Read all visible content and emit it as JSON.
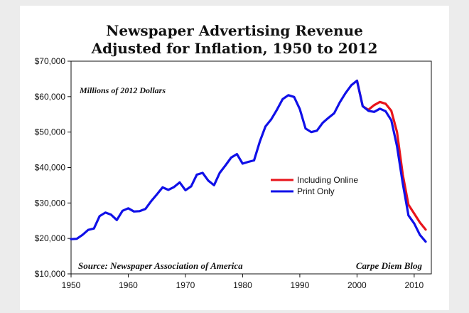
{
  "chart_data": {
    "type": "line",
    "title_line1": "Newspaper Advertising Revenue",
    "title_line2": "Adjusted for Inflation, 1950 to 2012",
    "units_note": "Millions of 2012 Dollars",
    "source": "Source: Newspaper Association of America",
    "credit": "Carpe Diem Blog",
    "xlim": [
      1950,
      2013
    ],
    "ylim": [
      10000,
      70000
    ],
    "x_ticks": [
      1950,
      1960,
      1970,
      1980,
      1990,
      2000,
      2010
    ],
    "y_ticks": [
      10000,
      20000,
      30000,
      40000,
      50000,
      60000,
      70000
    ],
    "y_tick_labels": [
      "$10,000",
      "$20,000",
      "$30,000",
      "$40,000",
      "$50,000",
      "$60,000",
      "$70,000"
    ],
    "grid": false,
    "legend_position": "center-right",
    "series": [
      {
        "name": "Including Online",
        "color": "#e8141b",
        "x": [
          2000,
          2001,
          2002,
          2003,
          2004,
          2005,
          2006,
          2007,
          2008,
          2009,
          2010,
          2011,
          2012
        ],
        "y": [
          64500,
          57300,
          56300,
          57600,
          58500,
          58000,
          56000,
          50000,
          38000,
          29500,
          27000,
          24500,
          22500
        ]
      },
      {
        "name": "Print Only",
        "color": "#1010e8",
        "x": [
          1950,
          1951,
          1952,
          1953,
          1954,
          1955,
          1956,
          1957,
          1958,
          1959,
          1960,
          1961,
          1962,
          1963,
          1964,
          1965,
          1966,
          1967,
          1968,
          1969,
          1970,
          1971,
          1972,
          1973,
          1974,
          1975,
          1976,
          1977,
          1978,
          1979,
          1980,
          1981,
          1982,
          1983,
          1984,
          1985,
          1986,
          1987,
          1988,
          1989,
          1990,
          1991,
          1992,
          1993,
          1994,
          1995,
          1996,
          1997,
          1998,
          1999,
          2000,
          2001,
          2002,
          2003,
          2004,
          2005,
          2006,
          2007,
          2008,
          2009,
          2010,
          2011,
          2012
        ],
        "y": [
          19800,
          19900,
          21000,
          22400,
          22800,
          26300,
          27300,
          26700,
          25200,
          27800,
          28500,
          27600,
          27700,
          28300,
          30500,
          32400,
          34400,
          33700,
          34500,
          35800,
          33600,
          34700,
          38000,
          38500,
          36300,
          35000,
          38500,
          40600,
          42800,
          43800,
          41100,
          41600,
          42000,
          47300,
          51600,
          53600,
          56300,
          59300,
          60400,
          59900,
          56500,
          51000,
          50000,
          50400,
          52600,
          54000,
          55300,
          58400,
          61000,
          63200,
          64500,
          57300,
          56000,
          55700,
          56600,
          55900,
          53300,
          46000,
          35500,
          26500,
          24200,
          21000,
          19100
        ]
      }
    ]
  }
}
